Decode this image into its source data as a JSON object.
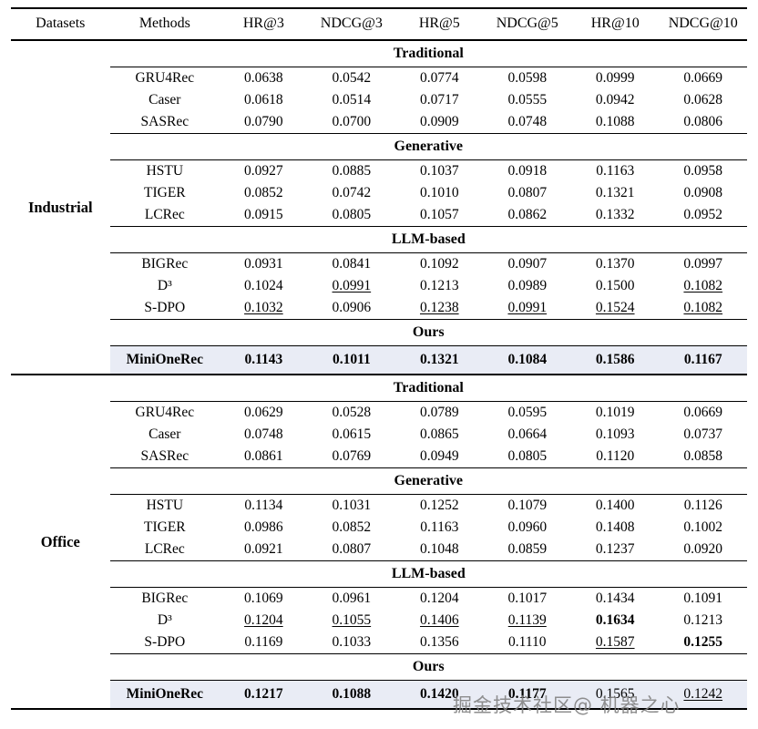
{
  "colors": {
    "highlight": "#e9ecf5",
    "rule": "#000000",
    "watermark_gray": "#808080"
  },
  "watermark": {
    "text": "掘金技术社区@ 机器之心"
  },
  "table": {
    "header": [
      "Datasets",
      "Methods",
      "HR@3",
      "NDCG@3",
      "HR@5",
      "NDCG@5",
      "HR@10",
      "NDCG@10"
    ],
    "datasets": [
      {
        "name": "Industrial",
        "groups": [
          {
            "label": "Traditional",
            "rows": [
              {
                "method": "GRU4Rec",
                "values": [
                  "0.0638",
                  "0.0542",
                  "0.0774",
                  "0.0598",
                  "0.0999",
                  "0.0669"
                ],
                "styles": "nnnnnn"
              },
              {
                "method": "Caser",
                "values": [
                  "0.0618",
                  "0.0514",
                  "0.0717",
                  "0.0555",
                  "0.0942",
                  "0.0628"
                ],
                "styles": "nnnnnn"
              },
              {
                "method": "SASRec",
                "values": [
                  "0.0790",
                  "0.0700",
                  "0.0909",
                  "0.0748",
                  "0.1088",
                  "0.0806"
                ],
                "styles": "nnnnnn"
              }
            ]
          },
          {
            "label": "Generative",
            "rows": [
              {
                "method": "HSTU",
                "values": [
                  "0.0927",
                  "0.0885",
                  "0.1037",
                  "0.0918",
                  "0.1163",
                  "0.0958"
                ],
                "styles": "nnnnnn"
              },
              {
                "method": "TIGER",
                "values": [
                  "0.0852",
                  "0.0742",
                  "0.1010",
                  "0.0807",
                  "0.1321",
                  "0.0908"
                ],
                "styles": "nnnnnn"
              },
              {
                "method": "LCRec",
                "values": [
                  "0.0915",
                  "0.0805",
                  "0.1057",
                  "0.0862",
                  "0.1332",
                  "0.0952"
                ],
                "styles": "nnnnnn"
              }
            ]
          },
          {
            "label": "LLM-based",
            "rows": [
              {
                "method": "BIGRec",
                "values": [
                  "0.0931",
                  "0.0841",
                  "0.1092",
                  "0.0907",
                  "0.1370",
                  "0.0997"
                ],
                "styles": "nnnnnn"
              },
              {
                "method": "D³",
                "values": [
                  "0.1024",
                  "0.0991",
                  "0.1213",
                  "0.0989",
                  "0.1500",
                  "0.1082"
                ],
                "styles": "nunnnu"
              },
              {
                "method": "S-DPO",
                "values": [
                  "0.1032",
                  "0.0906",
                  "0.1238",
                  "0.0991",
                  "0.1524",
                  "0.1082"
                ],
                "styles": "unuuuu"
              }
            ]
          },
          {
            "label": "Ours",
            "rows": [
              {
                "method": "MiniOneRec",
                "values": [
                  "0.1143",
                  "0.1011",
                  "0.1321",
                  "0.1084",
                  "0.1586",
                  "0.1167"
                ],
                "styles": "bbbbbb",
                "highlight": true,
                "bold_method": true
              }
            ]
          }
        ]
      },
      {
        "name": "Office",
        "groups": [
          {
            "label": "Traditional",
            "rows": [
              {
                "method": "GRU4Rec",
                "values": [
                  "0.0629",
                  "0.0528",
                  "0.0789",
                  "0.0595",
                  "0.1019",
                  "0.0669"
                ],
                "styles": "nnnnnn"
              },
              {
                "method": "Caser",
                "values": [
                  "0.0748",
                  "0.0615",
                  "0.0865",
                  "0.0664",
                  "0.1093",
                  "0.0737"
                ],
                "styles": "nnnnnn"
              },
              {
                "method": "SASRec",
                "values": [
                  "0.0861",
                  "0.0769",
                  "0.0949",
                  "0.0805",
                  "0.1120",
                  "0.0858"
                ],
                "styles": "nnnnnn"
              }
            ]
          },
          {
            "label": "Generative",
            "rows": [
              {
                "method": "HSTU",
                "values": [
                  "0.1134",
                  "0.1031",
                  "0.1252",
                  "0.1079",
                  "0.1400",
                  "0.1126"
                ],
                "styles": "nnnnnn"
              },
              {
                "method": "TIGER",
                "values": [
                  "0.0986",
                  "0.0852",
                  "0.1163",
                  "0.0960",
                  "0.1408",
                  "0.1002"
                ],
                "styles": "nnnnnn"
              },
              {
                "method": "LCRec",
                "values": [
                  "0.0921",
                  "0.0807",
                  "0.1048",
                  "0.0859",
                  "0.1237",
                  "0.0920"
                ],
                "styles": "nnnnnn"
              }
            ]
          },
          {
            "label": "LLM-based",
            "rows": [
              {
                "method": "BIGRec",
                "values": [
                  "0.1069",
                  "0.0961",
                  "0.1204",
                  "0.1017",
                  "0.1434",
                  "0.1091"
                ],
                "styles": "nnnnnn"
              },
              {
                "method": "D³",
                "values": [
                  "0.1204",
                  "0.1055",
                  "0.1406",
                  "0.1139",
                  "0.1634",
                  "0.1213"
                ],
                "styles": "uuuubn"
              },
              {
                "method": "S-DPO",
                "values": [
                  "0.1169",
                  "0.1033",
                  "0.1356",
                  "0.1110",
                  "0.1587",
                  "0.1255"
                ],
                "styles": "nnnnub"
              }
            ]
          },
          {
            "label": "Ours",
            "rows": [
              {
                "method": "MiniOneRec",
                "values": [
                  "0.1217",
                  "0.1088",
                  "0.1420",
                  "0.1177",
                  "0.1565",
                  "0.1242"
                ],
                "styles": "bbbbnu",
                "highlight": true,
                "bold_method": true
              }
            ]
          }
        ]
      }
    ]
  }
}
